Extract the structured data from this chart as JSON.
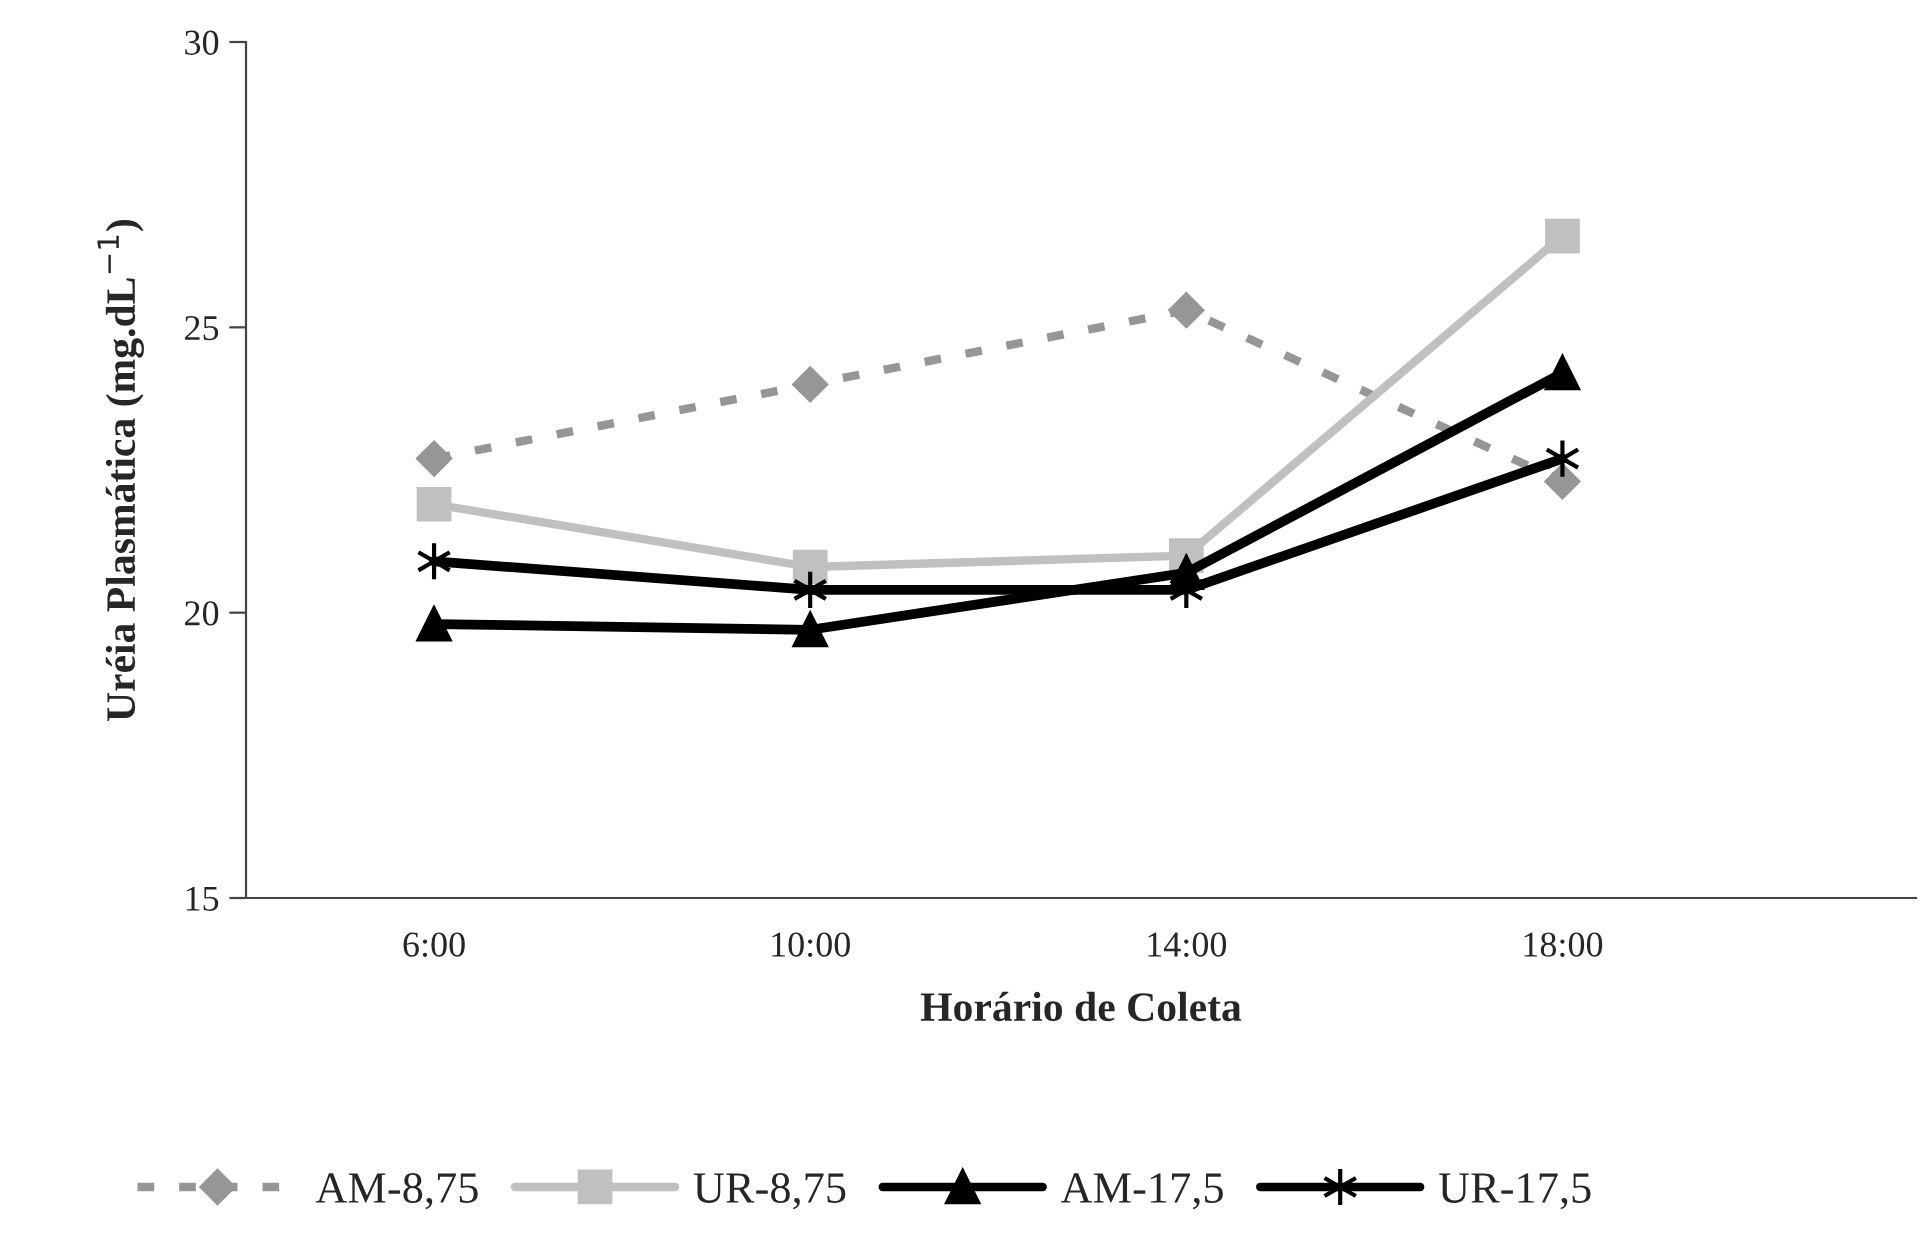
{
  "chart_data": {
    "type": "line",
    "xlabel": "Horário de Coleta",
    "ylabel": "Uréia Plasmática (mg.dL$^{−1}$)",
    "categories": [
      "6:00",
      "10:00",
      "14:00",
      "18:00"
    ],
    "series": [
      {
        "name": "AM-8,75",
        "color": "#969696",
        "marker": "diamond",
        "line_style": "dashed",
        "values": [
          22.7,
          24.0,
          25.3,
          22.3
        ]
      },
      {
        "name": "UR-8,75",
        "color": "#c0c0c0",
        "marker": "square",
        "line_style": "solid",
        "values": [
          21.9,
          20.8,
          21.0,
          26.6
        ]
      },
      {
        "name": "AM-17,5",
        "color": "#000000",
        "marker": "triangle",
        "line_style": "solid",
        "values": [
          19.8,
          19.7,
          20.7,
          24.2
        ]
      },
      {
        "name": "UR-17,5",
        "color": "#000000",
        "marker": "cross",
        "line_style": "solid",
        "values": [
          20.9,
          20.4,
          20.4,
          22.7
        ]
      }
    ],
    "ylim": [
      15,
      30
    ],
    "yticks": [
      15,
      20,
      25,
      30
    ],
    "grid": false,
    "legend": "bottom"
  }
}
